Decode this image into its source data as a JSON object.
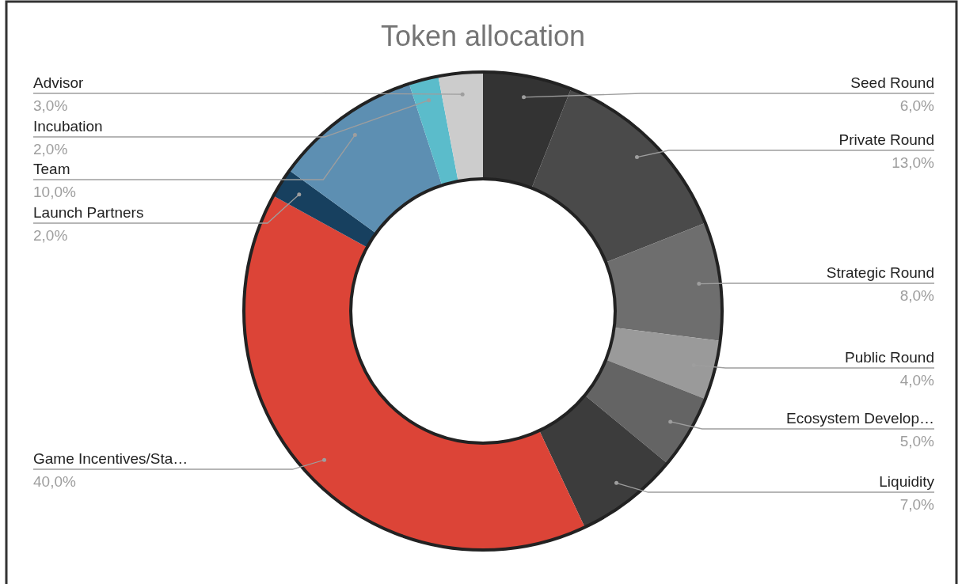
{
  "chart_data": {
    "type": "donut",
    "title": "Token allocation",
    "categories": [
      "Seed Round",
      "Private Round",
      "Strategic Round",
      "Public Round",
      "Ecosystem Develop…",
      "Liquidity",
      "Game Incentives/Sta…",
      "Launch Partners",
      "Team",
      "Incubation",
      "Advisor"
    ],
    "values": [
      6,
      13,
      8,
      4,
      5,
      7,
      40,
      2,
      10,
      2,
      3
    ],
    "value_labels": [
      "6,0%",
      "13,0%",
      "8,0%",
      "4,0%",
      "5,0%",
      "7,0%",
      "40,0%",
      "2,0%",
      "10,0%",
      "2,0%",
      "3,0%"
    ],
    "colors": [
      "#333333",
      "#4a4a4a",
      "#6e6e6e",
      "#9a9a9a",
      "#646464",
      "#3c3c3c",
      "#dc4437",
      "#17405f",
      "#5d8fb2",
      "#5bbccb",
      "#cccccc"
    ]
  }
}
